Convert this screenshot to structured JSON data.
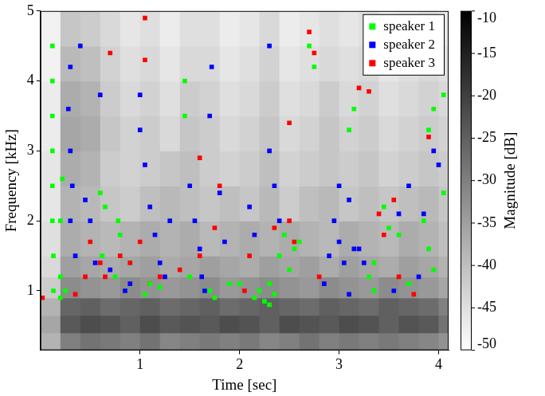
{
  "chart_data": {
    "type": "heatmap",
    "x_label": "Time [sec]",
    "y_label": "Frequency [kHz]",
    "xlim": [
      0,
      4.1
    ],
    "xticks": [
      1,
      2,
      3,
      4
    ],
    "ylim": [
      0.15,
      5
    ],
    "yticks": [
      1,
      2,
      3,
      4,
      5
    ],
    "grid": false,
    "legend": "top right",
    "heatmap": {
      "x": [
        0,
        0.2,
        0.4,
        0.6,
        0.8,
        1.0,
        1.2,
        1.4,
        1.6,
        1.8,
        2.0,
        2.2,
        2.4,
        2.6,
        2.8,
        3.0,
        3.2,
        3.4,
        3.6,
        3.8,
        4.0,
        4.1
      ],
      "y": [
        0.15,
        0.4,
        0.65,
        0.9,
        1.2,
        1.5,
        2,
        2.5,
        3,
        3.5,
        4,
        4.5,
        5
      ],
      "cells": [
        [
          -38,
          -30,
          -28,
          -29,
          -30,
          -28,
          -31,
          -30,
          -29,
          -30,
          -29,
          -31,
          -30,
          -28,
          -30,
          -29,
          -30,
          -29,
          -30,
          -31,
          -33
        ],
        [
          -36,
          -24,
          -22,
          -23,
          -25,
          -22,
          -24,
          -23,
          -24,
          -22,
          -23,
          -25,
          -22,
          -23,
          -24,
          -22,
          -23,
          -25,
          -23,
          -24,
          -28
        ],
        [
          -38,
          -26,
          -25,
          -27,
          -26,
          -25,
          -27,
          -26,
          -25,
          -27,
          -26,
          -25,
          -26,
          -27,
          -25,
          -26,
          -27,
          -25,
          -26,
          -27,
          -30
        ],
        [
          -42,
          -32,
          -33,
          -34,
          -32,
          -33,
          -34,
          -33,
          -32,
          -34,
          -33,
          -32,
          -33,
          -34,
          -32,
          -33,
          -34,
          -32,
          -33,
          -34,
          -36
        ],
        [
          -44,
          -35,
          -36,
          -37,
          -36,
          -35,
          -37,
          -36,
          -35,
          -36,
          -37,
          -35,
          -36,
          -35,
          -37,
          -35,
          -36,
          -37,
          -35,
          -36,
          -38
        ],
        [
          -45,
          -37,
          -38,
          -39,
          -38,
          -37,
          -38,
          -37,
          -39,
          -38,
          -37,
          -38,
          -37,
          -38,
          -39,
          -37,
          -38,
          -39,
          -37,
          -38,
          -40
        ],
        [
          -46,
          -38,
          -39,
          -41,
          -42,
          -40,
          -39,
          -40,
          -41,
          -40,
          -41,
          -39,
          -42,
          -40,
          -39,
          -41,
          -40,
          -41,
          -40,
          -39,
          -41
        ],
        [
          -46,
          -37,
          -38,
          -42,
          -43,
          -42,
          -41,
          -40,
          -42,
          -43,
          -42,
          -40,
          -43,
          -42,
          -41,
          -42,
          -41,
          -43,
          -42,
          -41,
          -42
        ],
        [
          -47,
          -36,
          -37,
          -41,
          -43,
          -42,
          -44,
          -41,
          -42,
          -44,
          -43,
          -41,
          -44,
          -43,
          -41,
          -43,
          -42,
          -44,
          -43,
          -42,
          -43
        ],
        [
          -47,
          -37,
          -38,
          -42,
          -44,
          -43,
          -45,
          -42,
          -43,
          -45,
          -44,
          -42,
          -45,
          -44,
          -42,
          -44,
          -43,
          -45,
          -44,
          -43,
          -44
        ],
        [
          -48,
          -39,
          -40,
          -43,
          -45,
          -44,
          -46,
          -44,
          -44,
          -46,
          -45,
          -43,
          -46,
          -45,
          -44,
          -45,
          -44,
          -46,
          -45,
          -44,
          -45
        ],
        [
          -48,
          -41,
          -42,
          -44,
          -46,
          -45,
          -47,
          -45,
          -45,
          -47,
          -46,
          -44,
          -47,
          -46,
          -45,
          -46,
          -45,
          -47,
          -46,
          -45,
          -46
        ]
      ],
      "colorbar_label": "Magnitude [dB]",
      "colorbar_lim": [
        -50,
        -10
      ],
      "colorbar_ticks": [
        -50,
        -45,
        -40,
        -35,
        -30,
        -25,
        -20,
        -15,
        -10
      ]
    },
    "series": [
      {
        "name": "speaker 1",
        "color": "#00ff00",
        "marker": "square",
        "x": [
          0.12,
          0.12,
          0.12,
          0.12,
          0.12,
          0.12,
          0.13,
          0.13,
          0.2,
          0.2,
          0.25,
          0.2,
          0.22,
          0.6,
          0.65,
          0.62,
          0.75,
          0.8,
          0.78,
          1.05,
          1.1,
          1.2,
          1.45,
          1.45,
          1.5,
          1.7,
          1.75,
          1.9,
          2.0,
          2.15,
          2.2,
          2.25,
          2.3,
          2.35,
          2.4,
          2.45,
          2.5,
          2.55,
          2.6,
          2.3,
          2.7,
          2.75,
          3.1,
          3.15,
          3.3,
          3.35,
          3.35,
          3.45,
          3.5,
          3.6,
          3.7,
          3.85,
          3.9,
          3.95,
          3.9,
          3.95,
          4.05,
          4.05
        ],
        "values": [
          4.5,
          4.0,
          3.5,
          3.0,
          2.5,
          2.0,
          1.5,
          1.0,
          1.2,
          0.9,
          1.0,
          2.0,
          2.6,
          2.4,
          2.2,
          1.5,
          1.2,
          1.8,
          2.0,
          0.95,
          1.1,
          1.05,
          3.5,
          4.0,
          1.2,
          1.0,
          0.9,
          1.1,
          1.1,
          0.9,
          1.0,
          0.85,
          1.1,
          0.95,
          1.5,
          1.8,
          1.3,
          1.6,
          1.7,
          0.8,
          4.5,
          4.2,
          3.3,
          3.6,
          1.2,
          1.0,
          1.4,
          2.2,
          1.9,
          1.8,
          1.1,
          2.0,
          1.6,
          1.3,
          3.3,
          3.6,
          3.8,
          2.4
        ]
      },
      {
        "name": "speaker 2",
        "color": "#0000ff",
        "marker": "square",
        "x": [
          0.3,
          0.28,
          0.3,
          0.32,
          0.3,
          0.35,
          0.4,
          0.45,
          0.5,
          0.6,
          0.55,
          0.7,
          0.85,
          0.9,
          1.0,
          1.0,
          1.05,
          1.1,
          1.15,
          1.2,
          1.25,
          1.3,
          1.5,
          1.55,
          1.6,
          1.62,
          1.65,
          1.7,
          1.72,
          1.8,
          1.85,
          2.1,
          2.15,
          2.3,
          2.35,
          2.4,
          2.3,
          2.85,
          2.9,
          2.95,
          3.0,
          3.05,
          3.0,
          3.1,
          3.15,
          3.2,
          3.25,
          3.1,
          3.55,
          3.6,
          3.7,
          3.8,
          3.85,
          3.95,
          4.0
        ],
        "values": [
          4.2,
          3.6,
          3.0,
          2.5,
          2.0,
          1.5,
          4.5,
          2.3,
          2.0,
          3.8,
          1.4,
          1.3,
          1.0,
          1.1,
          3.8,
          3.3,
          2.8,
          2.2,
          1.8,
          1.4,
          1.2,
          2.0,
          2.5,
          2.0,
          1.6,
          1.2,
          1.0,
          3.5,
          4.2,
          2.4,
          1.7,
          2.2,
          1.8,
          3.0,
          2.5,
          2.0,
          4.5,
          1.1,
          1.5,
          2.0,
          1.7,
          1.4,
          2.5,
          2.3,
          1.6,
          1.6,
          1.4,
          0.95,
          1.0,
          2.1,
          2.5,
          1.2,
          2.1,
          3.0,
          2.8
        ]
      },
      {
        "name": "speaker 3",
        "color": "#ff0000",
        "marker": "square",
        "x": [
          0.02,
          0.35,
          0.45,
          0.5,
          0.6,
          0.65,
          0.7,
          0.8,
          0.9,
          1.0,
          1.05,
          1.05,
          1.1,
          1.2,
          1.4,
          1.6,
          1.6,
          1.75,
          1.8,
          2.05,
          2.1,
          2.35,
          2.5,
          2.55,
          2.5,
          2.7,
          2.75,
          2.8,
          3.2,
          3.3,
          3.4,
          3.45,
          3.55,
          3.6,
          3.75,
          3.9
        ],
        "values": [
          0.9,
          0.95,
          1.2,
          1.7,
          1.4,
          1.2,
          4.4,
          1.5,
          1.4,
          1.7,
          4.9,
          4.3,
          1.1,
          1.2,
          1.3,
          1.5,
          2.9,
          1.9,
          2.5,
          1.0,
          1.5,
          1.9,
          2.0,
          1.7,
          3.4,
          4.7,
          4.4,
          1.2,
          3.9,
          3.85,
          2.1,
          1.8,
          2.3,
          1.2,
          0.95,
          3.2
        ]
      }
    ]
  }
}
